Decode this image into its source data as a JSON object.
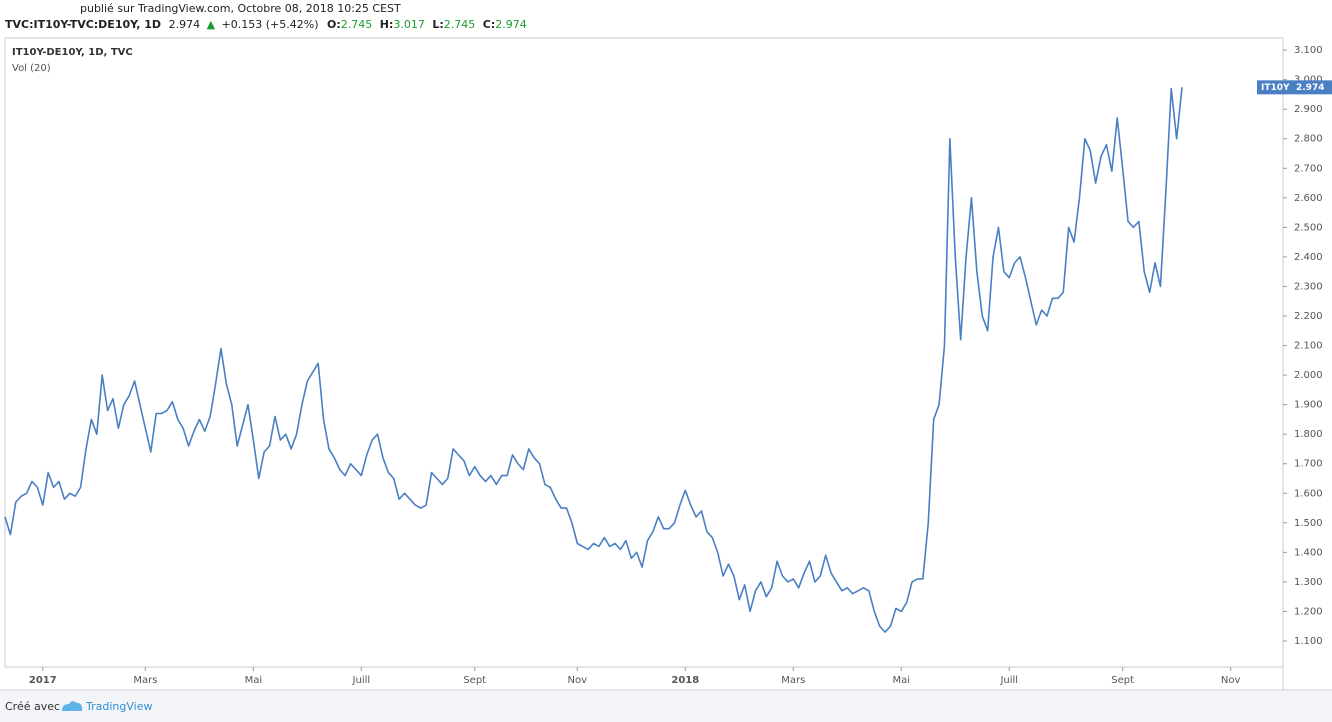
{
  "chart_data": {
    "type": "line",
    "published": "publié sur TradingView.com, Octobre 08, 2018 10:25 CEST",
    "header": {
      "symbol": "TVC:IT10Y-TVC:DE10Y, 1D",
      "last": "2.974",
      "change": "+0.153 (+5.42%)",
      "ohlc": [
        {
          "label": "O:",
          "value": "2.745"
        },
        {
          "label": "H:",
          "value": "3.017"
        },
        {
          "label": "L:",
          "value": "2.745"
        },
        {
          "label": "C:",
          "value": "2.974"
        }
      ]
    },
    "legend_title": "IT10Y-DE10Y, 1D, TVC",
    "indicator": "Vol (20)",
    "price_tag": "IT10Y",
    "footer": {
      "made_with": "Créé avec",
      "brand": "TradingView"
    },
    "series": [
      {
        "name": "IT10Y",
        "color": "#4a7fc4",
        "values": [
          1.52,
          1.46,
          1.57,
          1.59,
          1.6,
          1.64,
          1.62,
          1.56,
          1.67,
          1.62,
          1.64,
          1.58,
          1.6,
          1.59,
          1.62,
          1.75,
          1.85,
          1.8,
          2.0,
          1.88,
          1.92,
          1.82,
          1.9,
          1.93,
          1.98,
          1.9,
          1.82,
          1.74,
          1.87,
          1.87,
          1.88,
          1.91,
          1.85,
          1.82,
          1.76,
          1.81,
          1.85,
          1.81,
          1.86,
          1.97,
          2.09,
          1.97,
          1.9,
          1.76,
          1.83,
          1.9,
          1.78,
          1.65,
          1.74,
          1.76,
          1.86,
          1.78,
          1.8,
          1.75,
          1.8,
          1.9,
          1.98,
          2.01,
          2.04,
          1.85,
          1.75,
          1.72,
          1.68,
          1.66,
          1.7,
          1.68,
          1.66,
          1.73,
          1.78,
          1.8,
          1.72,
          1.67,
          1.65,
          1.58,
          1.6,
          1.58,
          1.56,
          1.55,
          1.56,
          1.67,
          1.65,
          1.63,
          1.65,
          1.75,
          1.73,
          1.71,
          1.66,
          1.69,
          1.66,
          1.64,
          1.66,
          1.63,
          1.66,
          1.66,
          1.73,
          1.7,
          1.68,
          1.75,
          1.72,
          1.7,
          1.63,
          1.62,
          1.58,
          1.55,
          1.55,
          1.5,
          1.43,
          1.42,
          1.41,
          1.43,
          1.42,
          1.45,
          1.42,
          1.43,
          1.41,
          1.44,
          1.38,
          1.4,
          1.35,
          1.44,
          1.47,
          1.52,
          1.48,
          1.48,
          1.5,
          1.56,
          1.61,
          1.56,
          1.52,
          1.54,
          1.47,
          1.45,
          1.4,
          1.32,
          1.36,
          1.32,
          1.24,
          1.29,
          1.2,
          1.27,
          1.3,
          1.25,
          1.28,
          1.37,
          1.32,
          1.3,
          1.31,
          1.28,
          1.33,
          1.37,
          1.3,
          1.32,
          1.39,
          1.33,
          1.3,
          1.27,
          1.28,
          1.26,
          1.27,
          1.28,
          1.27,
          1.2,
          1.15,
          1.13,
          1.15,
          1.21,
          1.2,
          1.23,
          1.3,
          1.31,
          1.31,
          1.5,
          1.85,
          1.9,
          2.1,
          2.8,
          2.4,
          2.12,
          2.4,
          2.6,
          2.35,
          2.2,
          2.15,
          2.4,
          2.5,
          2.35,
          2.33,
          2.38,
          2.4,
          2.33,
          2.25,
          2.17,
          2.22,
          2.2,
          2.26,
          2.26,
          2.28,
          2.5,
          2.45,
          2.6,
          2.8,
          2.76,
          2.65,
          2.74,
          2.78,
          2.69,
          2.87,
          2.7,
          2.52,
          2.5,
          2.52,
          2.35,
          2.28,
          2.38,
          2.3,
          2.62,
          2.97,
          2.8,
          2.974
        ]
      }
    ],
    "xlim": [
      0,
      236.7
    ],
    "xticks": [
      {
        "value": 7,
        "label": "2017"
      },
      {
        "value": 26,
        "label": "Mars"
      },
      {
        "value": 46,
        "label": "Mai"
      },
      {
        "value": 66,
        "label": "Juill"
      },
      {
        "value": 87,
        "label": "Sept"
      },
      {
        "value": 106,
        "label": "Nov"
      },
      {
        "value": 126,
        "label": "2018"
      },
      {
        "value": 146,
        "label": "Mars"
      },
      {
        "value": 166,
        "label": "Mai"
      },
      {
        "value": 186,
        "label": "Juill"
      },
      {
        "value": 207,
        "label": "Sept"
      },
      {
        "value": 227,
        "label": "Nov"
      }
    ],
    "ylim": [
      1.012,
      3.141
    ],
    "yticks": [
      {
        "value": 1.1,
        "label": "1.100"
      },
      {
        "value": 1.2,
        "label": "1.200"
      },
      {
        "value": 1.3,
        "label": "1.300"
      },
      {
        "value": 1.4,
        "label": "1.400"
      },
      {
        "value": 1.5,
        "label": "1.500"
      },
      {
        "value": 1.6,
        "label": "1.600"
      },
      {
        "value": 1.7,
        "label": "1.700"
      },
      {
        "value": 1.8,
        "label": "1.800"
      },
      {
        "value": 1.9,
        "label": "1.900"
      },
      {
        "value": 2.0,
        "label": "2.000"
      },
      {
        "value": 2.1,
        "label": "2.100"
      },
      {
        "value": 2.2,
        "label": "2.200"
      },
      {
        "value": 2.3,
        "label": "2.300"
      },
      {
        "value": 2.4,
        "label": "2.400"
      },
      {
        "value": 2.5,
        "label": "2.500"
      },
      {
        "value": 2.6,
        "label": "2.600"
      },
      {
        "value": 2.7,
        "label": "2.700"
      },
      {
        "value": 2.8,
        "label": "2.800"
      },
      {
        "value": 2.9,
        "label": "2.900"
      },
      {
        "value": 3.0,
        "label": "3.000"
      },
      {
        "value": 3.1,
        "label": "3.100"
      }
    ],
    "grid": false
  }
}
